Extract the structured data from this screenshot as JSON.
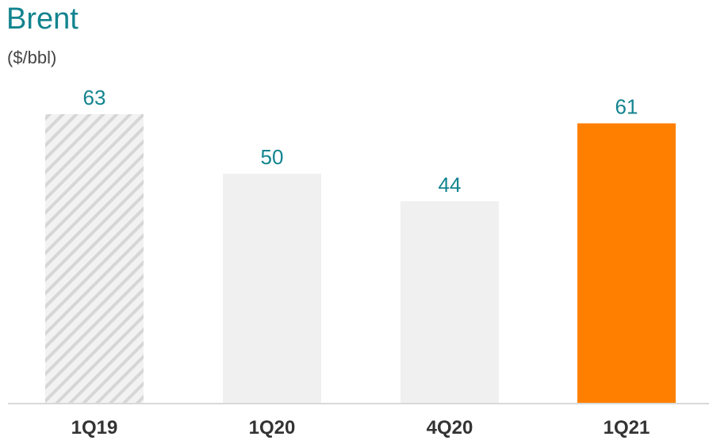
{
  "chart_data": {
    "type": "bar",
    "title": "Brent",
    "subtitle": "($/bbl)",
    "categories": [
      "1Q19",
      "1Q20",
      "4Q20",
      "1Q21"
    ],
    "values": [
      63,
      50,
      44,
      61
    ],
    "ylim": [
      0,
      63
    ],
    "grid": false,
    "legend": "none",
    "bar_styles": [
      "hatched",
      "plain",
      "plain",
      "highlight"
    ],
    "colors": {
      "title": "#13848f",
      "value_labels": "#13848f",
      "category_labels": "#333333",
      "bar_plain": "#f0f0f0",
      "bar_hatch_fill": "#f2f2f2",
      "bar_hatch_stripe": "#d6d6d6",
      "bar_highlight": "#ff8000",
      "baseline": "#d9d9d9"
    }
  }
}
